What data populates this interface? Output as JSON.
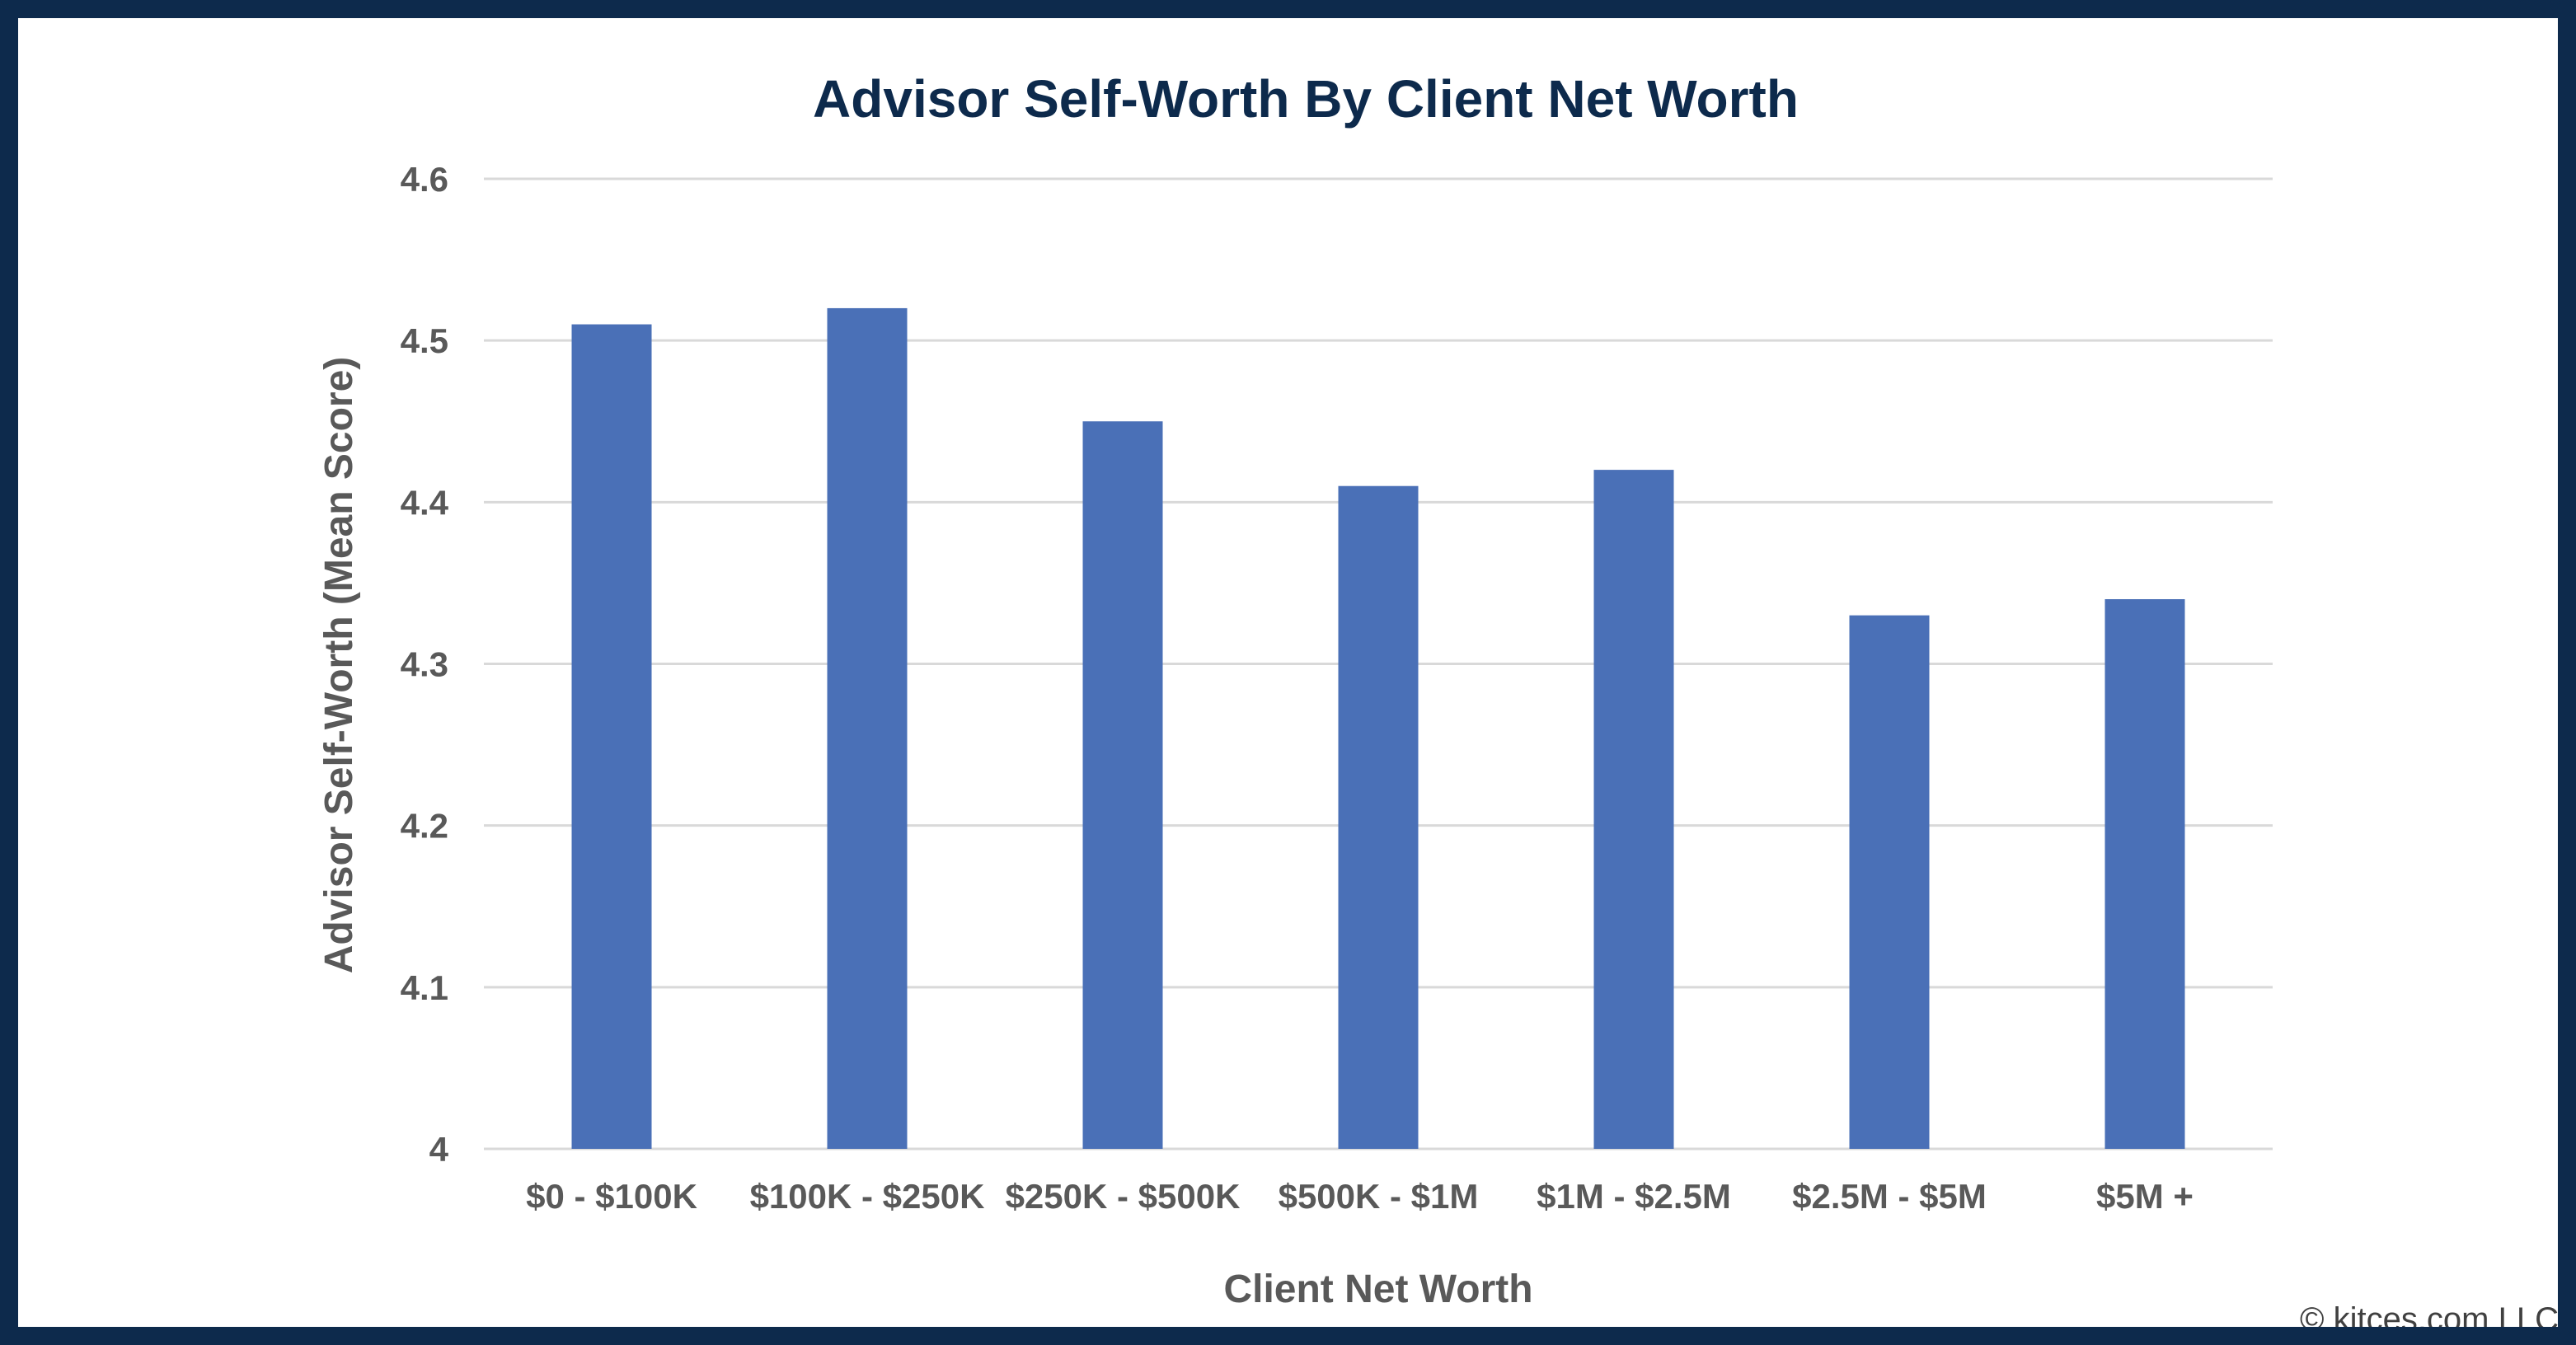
{
  "chart_data": {
    "type": "bar",
    "title": "Advisor Self-Worth By Client Net Worth",
    "xlabel": "Client Net Worth",
    "ylabel": "Advisor Self-Worth (Mean Score)",
    "categories": [
      "$0 - $100K",
      "$100K - $250K",
      "$250K - $500K",
      "$500K - $1M",
      "$1M - $2.5M",
      "$2.5M - $5M",
      "$5M +"
    ],
    "values": [
      4.51,
      4.52,
      4.45,
      4.41,
      4.42,
      4.33,
      4.34
    ],
    "ylim": [
      4,
      4.6
    ],
    "yticks": [
      "4",
      "4.1",
      "4.2",
      "4.3",
      "4.4",
      "4.5",
      "4.6"
    ],
    "grid": true,
    "legend": "none"
  },
  "credit": "© kitces.com LLC",
  "colors": {
    "bar": "#4a70b7",
    "frame": "#0d2a4c",
    "title": "#0d2a4c",
    "grid": "#d9d9d9",
    "axis_text": "#595959"
  }
}
